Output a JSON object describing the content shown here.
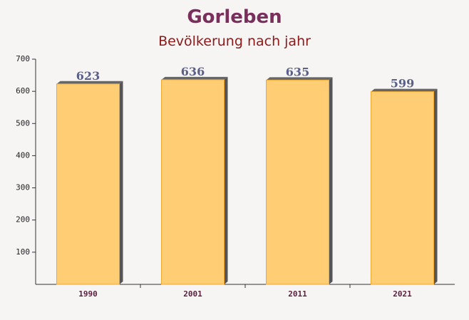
{
  "chart_data": {
    "type": "bar",
    "title": "Gorleben",
    "subtitle": "Bevölkerung nach jahr",
    "categories": [
      "1990",
      "2001",
      "2011",
      "2021"
    ],
    "values": [
      623,
      636,
      635,
      599
    ],
    "color": "#ffc966",
    "ylim": [
      0,
      700
    ],
    "yticks": [
      100,
      200,
      300,
      400,
      500,
      600,
      700
    ]
  }
}
